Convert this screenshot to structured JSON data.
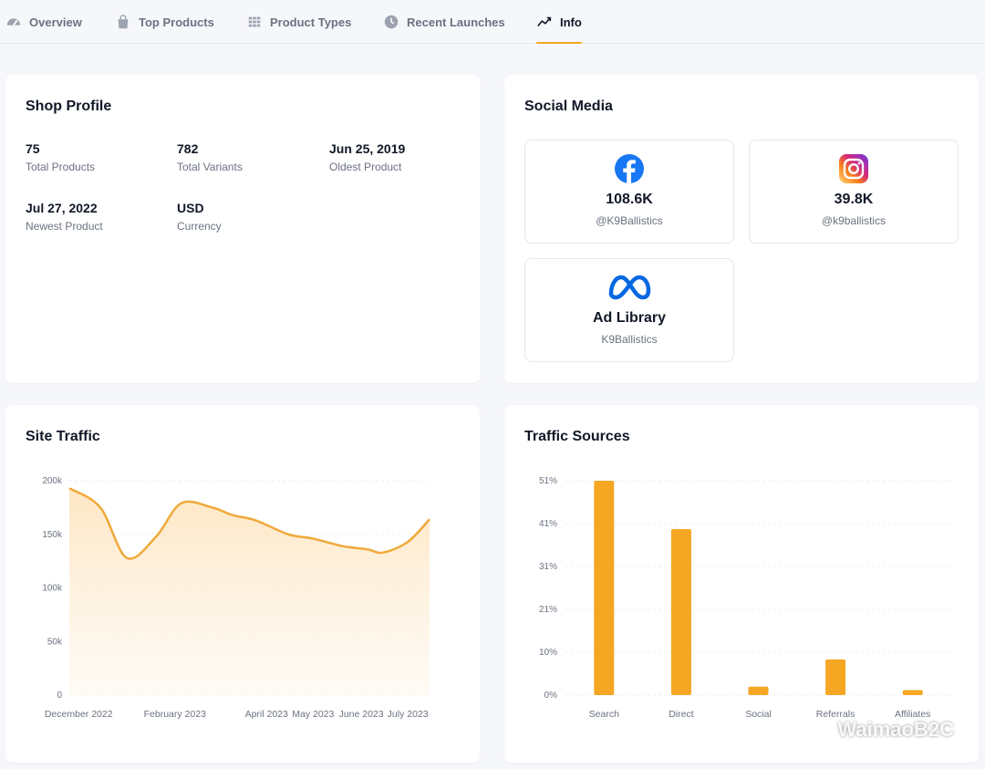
{
  "tabs": [
    {
      "label": "Overview",
      "icon": "gauge-icon"
    },
    {
      "label": "Top Products",
      "icon": "bag-icon"
    },
    {
      "label": "Product Types",
      "icon": "grid-icon"
    },
    {
      "label": "Recent Launches",
      "icon": "clock-icon"
    },
    {
      "label": "Info",
      "icon": "trend-icon",
      "active": true
    }
  ],
  "shop_profile": {
    "title": "Shop Profile",
    "stats": [
      {
        "value": "75",
        "label": "Total Products"
      },
      {
        "value": "782",
        "label": "Total Variants"
      },
      {
        "value": "Jun 25, 2019",
        "label": "Oldest Product"
      },
      {
        "value": "Jul 27, 2022",
        "label": "Newest Product"
      },
      {
        "value": "USD",
        "label": "Currency"
      }
    ]
  },
  "social_media": {
    "title": "Social Media",
    "items": [
      {
        "platform": "facebook",
        "count": "108.6K",
        "handle": "@K9Ballistics"
      },
      {
        "platform": "instagram",
        "count": "39.8K",
        "handle": "@k9ballistics"
      },
      {
        "platform": "meta",
        "count": "Ad Library",
        "handle": "K9Ballistics"
      }
    ]
  },
  "site_traffic": {
    "title": "Site Traffic"
  },
  "traffic_sources": {
    "title": "Traffic Sources"
  },
  "watermark": "WaimaoB2C",
  "colors": {
    "accent": "#f5a623",
    "line": "#f0a93a"
  },
  "chart_data": [
    {
      "type": "area",
      "title": "Site Traffic",
      "x": [
        "2022-11-25",
        "2022-12-15",
        "2023-01-01",
        "2023-01-20",
        "2023-02-05",
        "2023-02-25",
        "2023-03-10",
        "2023-03-25",
        "2023-04-15",
        "2023-05-01",
        "2023-05-20",
        "2023-06-05",
        "2023-06-15",
        "2023-07-01",
        "2023-07-15"
      ],
      "values": [
        193000,
        175000,
        128000,
        148000,
        179000,
        175000,
        168000,
        163000,
        150000,
        146000,
        139000,
        136000,
        133000,
        143000,
        164000
      ],
      "x_tick_labels": [
        "December 2022",
        "February 2023",
        "April 2023",
        "May 2023",
        "June 2023",
        "July 2023"
      ],
      "x_tick_dates": [
        "2022-12-01",
        "2023-02-01",
        "2023-04-01",
        "2023-05-01",
        "2023-06-01",
        "2023-07-01"
      ],
      "y_tick_labels": [
        "0",
        "50k",
        "100k",
        "150k",
        "200k"
      ],
      "ylim": [
        0,
        200000
      ],
      "grid": true
    },
    {
      "type": "bar",
      "title": "Traffic Sources",
      "categories": [
        "Search",
        "Direct",
        "Social",
        "Referrals",
        "Affiliates"
      ],
      "values": [
        51,
        39.5,
        2,
        8.5,
        1.2
      ],
      "y_tick_labels": [
        "0%",
        "10%",
        "21%",
        "31%",
        "41%",
        "51%"
      ],
      "ylim": [
        0,
        51
      ],
      "grid": true
    }
  ]
}
